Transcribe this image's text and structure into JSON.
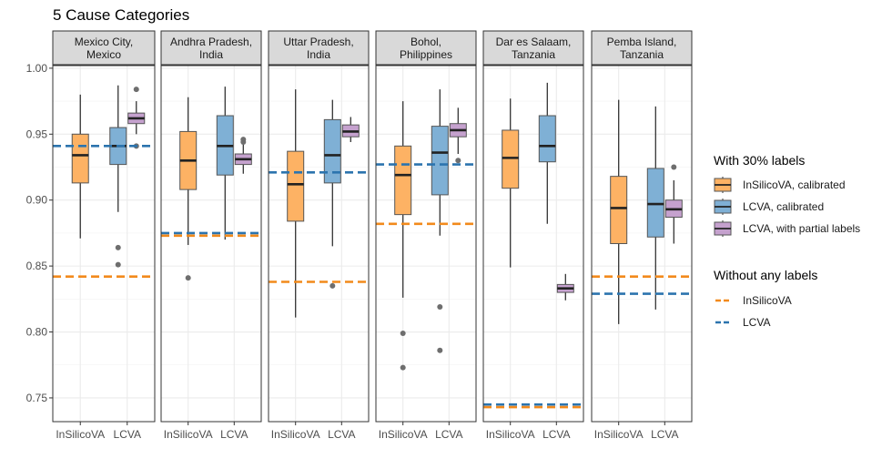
{
  "chart_data": {
    "type": "boxplot",
    "title": "5 Cause Categories",
    "xlabel": "",
    "ylabel": "",
    "ylim": [
      0.732,
      1.002
    ],
    "y_ticks": [
      0.75,
      0.8,
      0.85,
      0.9,
      0.95,
      1.0
    ],
    "y_tick_labels": [
      "0.75",
      "0.80",
      "0.85",
      "0.90",
      "0.95",
      "1.00"
    ],
    "x_categories": [
      "InSilicoVA",
      "LCVA"
    ],
    "colors": {
      "insilico_box": "#FDB264",
      "lcva_box": "#7FB0D5",
      "partial_box": "#C5A1CE",
      "insilico_line": "#F28A1C",
      "lcva_line": "#2C74AE",
      "strip_bg": "#D9D9D9",
      "grid": "#EBEBEB",
      "outlier": "#6E6E6E"
    },
    "legend": {
      "title_with": "With 30% labels",
      "with_items": [
        {
          "label": "InSilicoVA, calibrated",
          "series": "insilico"
        },
        {
          "label": "LCVA, calibrated",
          "series": "lcva"
        },
        {
          "label": "LCVA, with partial labels",
          "series": "partial"
        }
      ],
      "title_without": "Without any labels",
      "without_items": [
        {
          "label": "InSilicoVA",
          "series": "insilico"
        },
        {
          "label": "LCVA",
          "series": "lcva"
        }
      ]
    },
    "panels": [
      {
        "label_line1": "Mexico City,",
        "label_line2": "Mexico",
        "baseline_insilico": 0.842,
        "baseline_lcva": 0.941,
        "boxes": [
          {
            "series": "insilico",
            "x": "InSilicoVA",
            "min": 0.871,
            "q1": 0.913,
            "median": 0.934,
            "q3": 0.95,
            "max": 0.98,
            "outliers": []
          },
          {
            "series": "lcva",
            "x": "LCVA",
            "min": 0.891,
            "q1": 0.927,
            "median": 0.941,
            "q3": 0.955,
            "max": 0.987,
            "outliers": [
              0.864,
              0.851
            ]
          },
          {
            "series": "partial",
            "x": "LCVA",
            "min": 0.95,
            "q1": 0.958,
            "median": 0.962,
            "q3": 0.966,
            "max": 0.975,
            "outliers": [
              0.984,
              0.941
            ]
          }
        ]
      },
      {
        "label_line1": "Andhra Pradesh,",
        "label_line2": "India",
        "baseline_insilico": 0.873,
        "baseline_lcva": 0.875,
        "boxes": [
          {
            "series": "insilico",
            "x": "InSilicoVA",
            "min": 0.866,
            "q1": 0.908,
            "median": 0.93,
            "q3": 0.952,
            "max": 0.978,
            "outliers": [
              0.841
            ]
          },
          {
            "series": "lcva",
            "x": "LCVA",
            "min": 0.87,
            "q1": 0.919,
            "median": 0.941,
            "q3": 0.964,
            "max": 0.986,
            "outliers": []
          },
          {
            "series": "partial",
            "x": "LCVA",
            "min": 0.92,
            "q1": 0.927,
            "median": 0.931,
            "q3": 0.935,
            "max": 0.943,
            "outliers": [
              0.946,
              0.944
            ]
          }
        ]
      },
      {
        "label_line1": "Uttar Pradesh,",
        "label_line2": "India",
        "baseline_insilico": 0.838,
        "baseline_lcva": 0.921,
        "boxes": [
          {
            "series": "insilico",
            "x": "InSilicoVA",
            "min": 0.811,
            "q1": 0.884,
            "median": 0.912,
            "q3": 0.937,
            "max": 0.984,
            "outliers": []
          },
          {
            "series": "lcva",
            "x": "LCVA",
            "min": 0.865,
            "q1": 0.913,
            "median": 0.934,
            "q3": 0.961,
            "max": 0.976,
            "outliers": [
              0.835
            ]
          },
          {
            "series": "partial",
            "x": "LCVA",
            "min": 0.944,
            "q1": 0.948,
            "median": 0.952,
            "q3": 0.957,
            "max": 0.963,
            "outliers": []
          }
        ]
      },
      {
        "label_line1": "Bohol,",
        "label_line2": "Philippines",
        "baseline_insilico": 0.882,
        "baseline_lcva": 0.927,
        "boxes": [
          {
            "series": "insilico",
            "x": "InSilicoVA",
            "min": 0.826,
            "q1": 0.889,
            "median": 0.919,
            "q3": 0.941,
            "max": 0.975,
            "outliers": [
              0.799,
              0.773
            ]
          },
          {
            "series": "lcva",
            "x": "LCVA",
            "min": 0.873,
            "q1": 0.904,
            "median": 0.936,
            "q3": 0.956,
            "max": 0.984,
            "outliers": [
              0.819,
              0.786
            ]
          },
          {
            "series": "partial",
            "x": "LCVA",
            "min": 0.935,
            "q1": 0.948,
            "median": 0.953,
            "q3": 0.958,
            "max": 0.97,
            "outliers": [
              0.93
            ]
          }
        ]
      },
      {
        "label_line1": "Dar es Salaam,",
        "label_line2": "Tanzania",
        "baseline_insilico": 0.743,
        "baseline_lcva": 0.745,
        "boxes": [
          {
            "series": "insilico",
            "x": "InSilicoVA",
            "min": 0.849,
            "q1": 0.909,
            "median": 0.932,
            "q3": 0.953,
            "max": 0.977,
            "outliers": []
          },
          {
            "series": "lcva",
            "x": "LCVA",
            "min": 0.882,
            "q1": 0.929,
            "median": 0.941,
            "q3": 0.964,
            "max": 0.989,
            "outliers": []
          },
          {
            "series": "partial",
            "x": "LCVA",
            "min": 0.824,
            "q1": 0.83,
            "median": 0.833,
            "q3": 0.836,
            "max": 0.844,
            "outliers": []
          }
        ]
      },
      {
        "label_line1": "Pemba Island,",
        "label_line2": "Tanzania",
        "baseline_insilico": 0.842,
        "baseline_lcva": 0.829,
        "boxes": [
          {
            "series": "insilico",
            "x": "InSilicoVA",
            "min": 0.806,
            "q1": 0.867,
            "median": 0.894,
            "q3": 0.918,
            "max": 0.976,
            "outliers": []
          },
          {
            "series": "lcva",
            "x": "LCVA",
            "min": 0.817,
            "q1": 0.872,
            "median": 0.897,
            "q3": 0.924,
            "max": 0.971,
            "outliers": []
          },
          {
            "series": "partial",
            "x": "LCVA",
            "min": 0.867,
            "q1": 0.887,
            "median": 0.893,
            "q3": 0.9,
            "max": 0.915,
            "outliers": [
              0.925
            ]
          }
        ]
      }
    ]
  }
}
